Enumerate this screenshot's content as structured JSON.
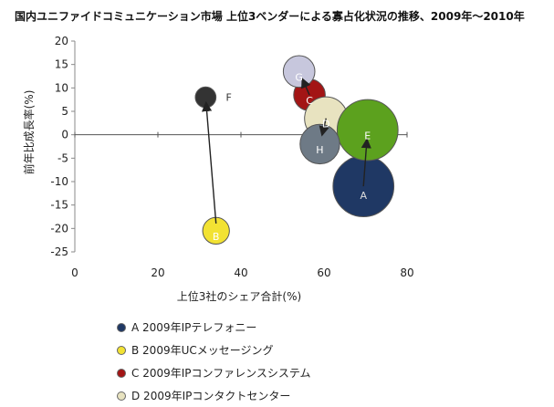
{
  "chart_data": {
    "type": "scatter",
    "title": "国内ユニファイドコミュニケーション市場 上位3ベンダーによる寡占化状況の推移、2009年〜2010年",
    "xlabel": "上位3社のシェア合計(%)",
    "ylabel": "前年比成長率(%)",
    "xlim": [
      0,
      80
    ],
    "ylim": [
      -25,
      20
    ],
    "xticks": [
      0,
      20,
      40,
      60,
      80
    ],
    "yticks": [
      20,
      15,
      10,
      5,
      0,
      -5,
      -10,
      -15,
      -20,
      -25
    ],
    "points": [
      {
        "label": "A",
        "x": 69.5,
        "y": -11,
        "size": 13,
        "color": "#1f3864"
      },
      {
        "label": "B",
        "x": 34,
        "y": -20.5,
        "size": 2.5,
        "color": "#f2e233"
      },
      {
        "label": "C",
        "x": 56.5,
        "y": 8.5,
        "size": 3.5,
        "color": "#a31515"
      },
      {
        "label": "D",
        "x": 60.5,
        "y": 3.5,
        "size": 6.5,
        "color": "#e8e3c0"
      },
      {
        "label": "E",
        "x": 70.5,
        "y": 1,
        "size": 13,
        "color": "#5ca11e"
      },
      {
        "label": "F",
        "x": 31.5,
        "y": 8,
        "size": 1.5,
        "color": "#333333"
      },
      {
        "label": "G",
        "x": 54,
        "y": 13.5,
        "size": 3.5,
        "color": "#c7c7dd"
      },
      {
        "label": "H",
        "x": 59,
        "y": -2,
        "size": 5.5,
        "color": "#6e7a86"
      }
    ],
    "arrows": [
      {
        "from": "A",
        "to": "E"
      },
      {
        "from": "B",
        "to": "F"
      },
      {
        "from": "C",
        "to": "G"
      },
      {
        "from": "D",
        "to": "H"
      }
    ],
    "legend": [
      {
        "marker": "A",
        "text": "A 2009年IPテレフォニー",
        "color": "#1f3864"
      },
      {
        "marker": "B",
        "text": "B 2009年UCメッセージング",
        "color": "#f2e233"
      },
      {
        "marker": "C",
        "text": "C 2009年IPコンファレンスシステム",
        "color": "#a31515"
      },
      {
        "marker": "D",
        "text": "D 2009年IPコンタクトセンター",
        "color": "#e8e3c0"
      }
    ]
  }
}
